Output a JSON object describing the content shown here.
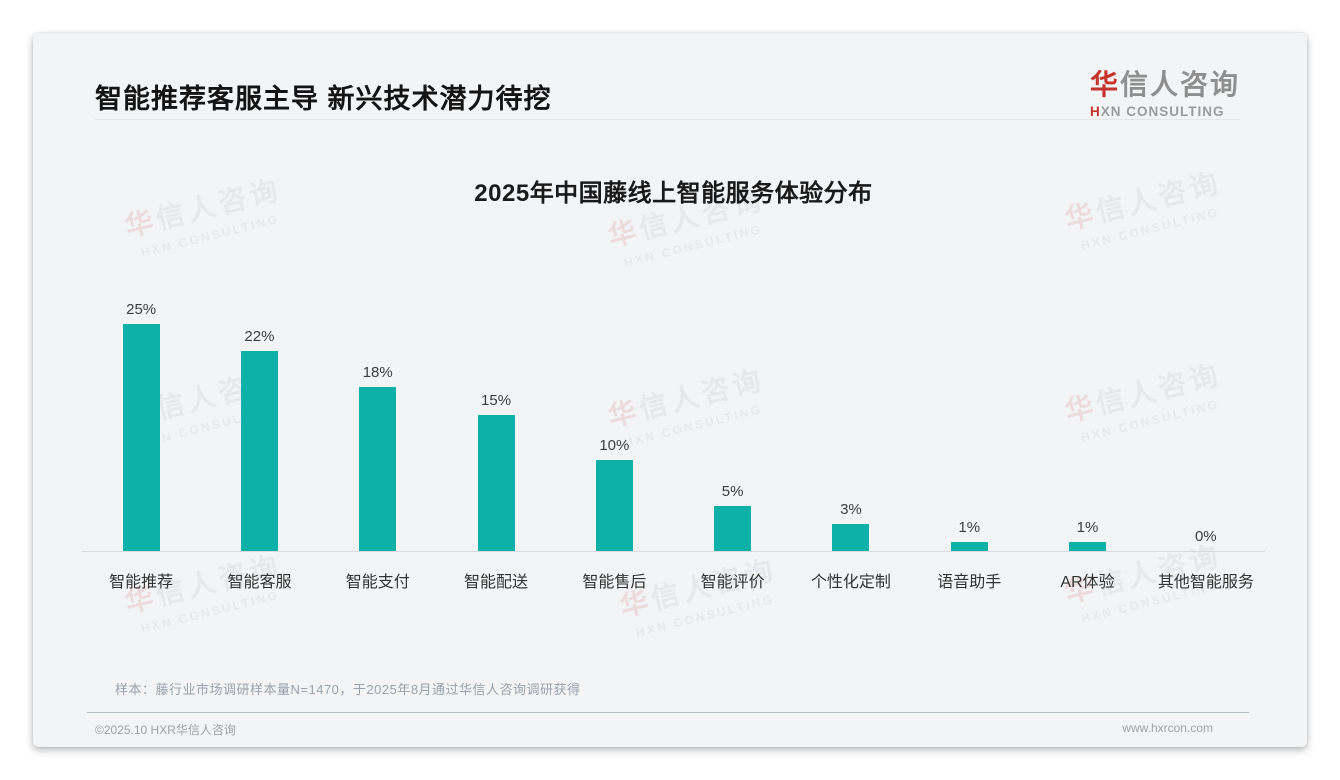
{
  "header": {
    "title": "智能推荐客服主导 新兴技术潜力待挖",
    "logo": {
      "cn_first": "华",
      "cn_rest": "信人咨询",
      "en_first": "H",
      "en_rest": "XN CONSULTING"
    }
  },
  "watermark": {
    "line1_first": "华",
    "line1_rest": "信人咨询",
    "line2": "HXN CONSULTING"
  },
  "chart_data": {
    "type": "bar",
    "title": "2025年中国藤线上智能服务体验分布",
    "categories": [
      "智能推荐",
      "智能客服",
      "智能支付",
      "智能配送",
      "智能售后",
      "智能评价",
      "个性化定制",
      "语音助手",
      "AR体验",
      "其他智能服务"
    ],
    "values": [
      25,
      22,
      18,
      15,
      10,
      5,
      3,
      1,
      1,
      0
    ],
    "value_labels": [
      "25%",
      "22%",
      "18%",
      "15%",
      "10%",
      "5%",
      "3%",
      "1%",
      "1%",
      "0%"
    ],
    "bar_color": "#0db1a7",
    "xlabel": "",
    "ylabel": "",
    "ylim": [
      0,
      27
    ],
    "grid": false,
    "legend": "none",
    "value_label_color": "#3d3d3d",
    "axis_line_color": "#d9dade"
  },
  "footer": {
    "note": "样本：藤行业市场调研样本量N=1470，于2025年8月通过华信人咨询调研获得",
    "copyright": "©2025.10 HXR华信人咨询",
    "website": "www.hxrcon.com"
  }
}
